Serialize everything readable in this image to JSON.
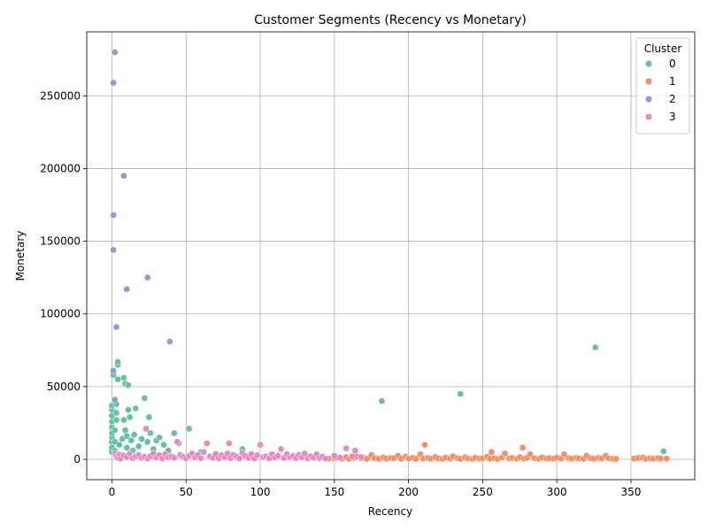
{
  "chart_data": {
    "type": "scatter",
    "title": "Customer Segments (Recency vs Monetary)",
    "xlabel": "Recency",
    "ylabel": "Monetary",
    "xlim": [
      -17,
      393
    ],
    "ylim": [
      -14000,
      294000
    ],
    "xticks": [
      0,
      50,
      100,
      150,
      200,
      250,
      300,
      350
    ],
    "yticks": [
      0,
      50000,
      100000,
      150000,
      200000,
      250000
    ],
    "grid": true,
    "legend": {
      "title": "Cluster",
      "placement": "top-right"
    },
    "series": [
      {
        "name": "0",
        "color": "#66c2a5",
        "points": [
          [
            0,
            5000
          ],
          [
            0,
            8000
          ],
          [
            0,
            12000
          ],
          [
            0,
            15000
          ],
          [
            0,
            18000
          ],
          [
            0,
            22000
          ],
          [
            0,
            26000
          ],
          [
            0,
            30000
          ],
          [
            0,
            34000
          ],
          [
            0,
            37000
          ],
          [
            1,
            60000
          ],
          [
            1,
            58000
          ],
          [
            2,
            20000
          ],
          [
            2,
            12000
          ],
          [
            2,
            6000
          ],
          [
            3,
            27000
          ],
          [
            3,
            32000
          ],
          [
            3,
            38000
          ],
          [
            4,
            55000
          ],
          [
            4,
            65000
          ],
          [
            4,
            67000
          ],
          [
            5,
            10000
          ],
          [
            6,
            3000
          ],
          [
            7,
            14000
          ],
          [
            8,
            56000
          ],
          [
            8,
            27000
          ],
          [
            9,
            52000
          ],
          [
            9,
            20000
          ],
          [
            10,
            16000
          ],
          [
            10,
            8000
          ],
          [
            11,
            51000
          ],
          [
            11,
            34000
          ],
          [
            12,
            29000
          ],
          [
            13,
            13000
          ],
          [
            14,
            6000
          ],
          [
            15,
            17000
          ],
          [
            16,
            35000
          ],
          [
            18,
            9000
          ],
          [
            20,
            14000
          ],
          [
            22,
            42000
          ],
          [
            24,
            12000
          ],
          [
            25,
            29000
          ],
          [
            26,
            18000
          ],
          [
            28,
            7000
          ],
          [
            30,
            13000
          ],
          [
            32,
            15000
          ],
          [
            35,
            10000
          ],
          [
            38,
            6000
          ],
          [
            42,
            18000
          ],
          [
            45,
            11000
          ],
          [
            52,
            21000
          ],
          [
            60,
            5000
          ],
          [
            70,
            4000
          ],
          [
            88,
            7000
          ],
          [
            182,
            40000
          ],
          [
            235,
            45000
          ],
          [
            326,
            77000
          ],
          [
            372,
            5500
          ]
        ]
      },
      {
        "name": "1",
        "color": "#fc8d62",
        "points": [
          [
            146,
            500
          ],
          [
            150,
            800
          ],
          [
            152,
            1200
          ],
          [
            155,
            300
          ],
          [
            158,
            1500
          ],
          [
            160,
            400
          ],
          [
            163,
            900
          ],
          [
            165,
            2000
          ],
          [
            168,
            600
          ],
          [
            170,
            1100
          ],
          [
            172,
            300
          ],
          [
            175,
            3000
          ],
          [
            177,
            800
          ],
          [
            180,
            400
          ],
          [
            183,
            1300
          ],
          [
            185,
            500
          ],
          [
            188,
            900
          ],
          [
            190,
            700
          ],
          [
            193,
            2500
          ],
          [
            195,
            400
          ],
          [
            198,
            1800
          ],
          [
            200,
            600
          ],
          [
            203,
            1000
          ],
          [
            205,
            300
          ],
          [
            208,
            3500
          ],
          [
            210,
            500
          ],
          [
            211,
            10000
          ],
          [
            213,
            900
          ],
          [
            215,
            400
          ],
          [
            218,
            1600
          ],
          [
            220,
            700
          ],
          [
            223,
            300
          ],
          [
            225,
            1200
          ],
          [
            228,
            500
          ],
          [
            230,
            2000
          ],
          [
            233,
            800
          ],
          [
            235,
            400
          ],
          [
            238,
            1400
          ],
          [
            240,
            600
          ],
          [
            243,
            300
          ],
          [
            245,
            1000
          ],
          [
            248,
            500
          ],
          [
            250,
            800
          ],
          [
            253,
            1800
          ],
          [
            255,
            400
          ],
          [
            256,
            5000
          ],
          [
            258,
            700
          ],
          [
            260,
            300
          ],
          [
            263,
            1200
          ],
          [
            265,
            4000
          ],
          [
            268,
            600
          ],
          [
            270,
            900
          ],
          [
            273,
            400
          ],
          [
            275,
            1500
          ],
          [
            277,
            8000
          ],
          [
            278,
            500
          ],
          [
            280,
            1000
          ],
          [
            282,
            3500
          ],
          [
            285,
            700
          ],
          [
            288,
            400
          ],
          [
            290,
            1300
          ],
          [
            293,
            600
          ],
          [
            295,
            800
          ],
          [
            298,
            400
          ],
          [
            300,
            1100
          ],
          [
            303,
            500
          ],
          [
            305,
            3500
          ],
          [
            308,
            800
          ],
          [
            310,
            400
          ],
          [
            313,
            1000
          ],
          [
            315,
            600
          ],
          [
            318,
            300
          ],
          [
            320,
            2500
          ],
          [
            323,
            700
          ],
          [
            325,
            400
          ],
          [
            328,
            900
          ],
          [
            330,
            500
          ],
          [
            333,
            2500
          ],
          [
            335,
            700
          ],
          [
            338,
            400
          ],
          [
            340,
            300
          ],
          [
            352,
            500
          ],
          [
            355,
            900
          ],
          [
            358,
            1200
          ],
          [
            360,
            300
          ],
          [
            363,
            700
          ],
          [
            365,
            400
          ],
          [
            368,
            800
          ],
          [
            370,
            600
          ],
          [
            374,
            500
          ]
        ]
      },
      {
        "name": "2",
        "color": "#8da0cb",
        "points": [
          [
            1,
            259000
          ],
          [
            1,
            168000
          ],
          [
            1,
            144000
          ],
          [
            1,
            61000
          ],
          [
            2,
            41000
          ],
          [
            2,
            280000
          ],
          [
            3,
            91000
          ],
          [
            8,
            195000
          ],
          [
            10,
            117000
          ],
          [
            24,
            125000
          ],
          [
            39,
            81000
          ]
        ]
      },
      {
        "name": "3",
        "color": "#e78ac3",
        "points": [
          [
            2,
            4000
          ],
          [
            3,
            2000
          ],
          [
            4,
            1000
          ],
          [
            5,
            3000
          ],
          [
            6,
            500
          ],
          [
            8,
            2500
          ],
          [
            10,
            1500
          ],
          [
            12,
            4000
          ],
          [
            14,
            800
          ],
          [
            16,
            2000
          ],
          [
            18,
            3000
          ],
          [
            20,
            1000
          ],
          [
            22,
            1800
          ],
          [
            23,
            21000
          ],
          [
            24,
            500
          ],
          [
            26,
            2200
          ],
          [
            28,
            4000
          ],
          [
            30,
            1200
          ],
          [
            32,
            2800
          ],
          [
            34,
            600
          ],
          [
            36,
            3500
          ],
          [
            38,
            1500
          ],
          [
            40,
            2000
          ],
          [
            42,
            1000
          ],
          [
            44,
            12000
          ],
          [
            46,
            3000
          ],
          [
            48,
            1800
          ],
          [
            50,
            600
          ],
          [
            52,
            2500
          ],
          [
            54,
            4000
          ],
          [
            56,
            1200
          ],
          [
            58,
            3000
          ],
          [
            60,
            800
          ],
          [
            62,
            5000
          ],
          [
            64,
            11000
          ],
          [
            66,
            2000
          ],
          [
            68,
            1000
          ],
          [
            70,
            3500
          ],
          [
            72,
            600
          ],
          [
            74,
            2800
          ],
          [
            76,
            1500
          ],
          [
            78,
            4000
          ],
          [
            79,
            11000
          ],
          [
            80,
            800
          ],
          [
            82,
            3000
          ],
          [
            84,
            1800
          ],
          [
            86,
            600
          ],
          [
            88,
            4500
          ],
          [
            90,
            2200
          ],
          [
            92,
            1000
          ],
          [
            94,
            3500
          ],
          [
            96,
            600
          ],
          [
            98,
            2800
          ],
          [
            100,
            10000
          ],
          [
            102,
            1500
          ],
          [
            104,
            2000
          ],
          [
            106,
            700
          ],
          [
            108,
            3500
          ],
          [
            110,
            1200
          ],
          [
            112,
            2500
          ],
          [
            114,
            7000
          ],
          [
            116,
            900
          ],
          [
            118,
            3500
          ],
          [
            120,
            1500
          ],
          [
            122,
            2200
          ],
          [
            124,
            800
          ],
          [
            126,
            3000
          ],
          [
            128,
            1200
          ],
          [
            130,
            4000
          ],
          [
            132,
            600
          ],
          [
            134,
            2000
          ],
          [
            136,
            1000
          ],
          [
            138,
            3500
          ],
          [
            140,
            800
          ],
          [
            142,
            1800
          ],
          [
            144,
            500
          ],
          [
            150,
            2500
          ],
          [
            154,
            1200
          ],
          [
            158,
            7500
          ],
          [
            162,
            2000
          ],
          [
            164,
            6000
          ],
          [
            168,
            1500
          ]
        ]
      }
    ]
  }
}
